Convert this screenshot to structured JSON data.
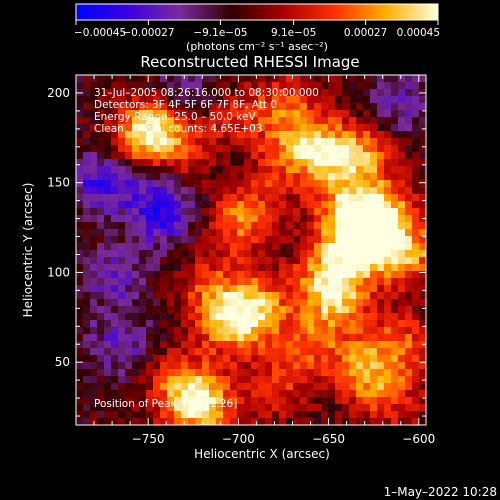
{
  "chart_data": {
    "type": "heatmap",
    "title": "Reconstructed RHESSI Image",
    "xlabel": "Heliocentric X (arcsec)",
    "ylabel": "Heliocentric Y (arcsec)",
    "xlim": [
      -790,
      -596
    ],
    "ylim": [
      15,
      210
    ],
    "x_ticks": [
      -750,
      -700,
      -650,
      -600
    ],
    "x_tick_labels": [
      "−750",
      "−700",
      "−650",
      "−600"
    ],
    "y_ticks": [
      50,
      100,
      150,
      200
    ],
    "y_tick_labels": [
      "50",
      "100",
      "150",
      "200"
    ],
    "colorbar": {
      "range": [
        -0.00045,
        0.00045
      ],
      "tick_values": [
        -0.00045,
        -0.00027,
        -9.1e-05,
        9.1e-05,
        0.00027,
        0.00045
      ],
      "tick_labels": [
        "−0.00045",
        "−0.00027",
        "−9.1e−05",
        "9.1e−05",
        "0.00027",
        "0.00045"
      ],
      "unit_label": "(photons cm⁻² s⁻¹ asec⁻²)",
      "colors": [
        "#0000ff",
        "#3a00e0",
        "#7a2a9a",
        "#300000",
        "#a80000",
        "#ff3000",
        "#ffb000",
        "#ffffe0"
      ]
    },
    "annotations": [
      "31–Jul–2005 08:26:16.000 to 08:30:00.000",
      "Detectors: 3F 4F 5F 6F 7F 8F, Att 0",
      "Energy Range: 25.0 – 50.0 keV",
      "Clean     Total counts: 4.65E+03"
    ],
    "peak_label": "Position of Peak: [−721,26]",
    "peak": [
      -721,
      26
    ],
    "hot_spots": [
      {
        "x": -745,
        "y": 180,
        "value": 0.00032
      },
      {
        "x": -755,
        "y": 175,
        "value": 0.00024
      },
      {
        "x": -725,
        "y": 162,
        "value": 0.00016
      },
      {
        "x": -700,
        "y": 128,
        "value": 0.00028
      },
      {
        "x": -690,
        "y": 150,
        "value": 0.00022
      },
      {
        "x": -668,
        "y": 170,
        "value": 0.00026
      },
      {
        "x": -650,
        "y": 165,
        "value": 0.0003
      },
      {
        "x": -640,
        "y": 132,
        "value": 0.00034
      },
      {
        "x": -628,
        "y": 118,
        "value": 0.00045
      },
      {
        "x": -632,
        "y": 165,
        "value": 0.00028
      },
      {
        "x": -618,
        "y": 135,
        "value": 0.00026
      },
      {
        "x": -605,
        "y": 110,
        "value": 0.0003
      },
      {
        "x": -650,
        "y": 100,
        "value": 0.00032
      },
      {
        "x": -645,
        "y": 85,
        "value": 0.0003
      },
      {
        "x": -690,
        "y": 80,
        "value": 0.00035
      },
      {
        "x": -705,
        "y": 70,
        "value": 0.00028
      },
      {
        "x": -715,
        "y": 90,
        "value": 0.00022
      },
      {
        "x": -660,
        "y": 60,
        "value": 0.00024
      },
      {
        "x": -630,
        "y": 45,
        "value": 0.0003
      },
      {
        "x": -610,
        "y": 60,
        "value": 0.00024
      },
      {
        "x": -735,
        "y": 40,
        "value": 0.0002
      },
      {
        "x": -721,
        "y": 26,
        "value": 0.00045
      },
      {
        "x": -760,
        "y": 120,
        "value": 0.00014
      },
      {
        "x": -700,
        "y": 185,
        "value": 0.00018
      },
      {
        "x": -672,
        "y": 195,
        "value": 0.0002
      },
      {
        "x": -615,
        "y": 28,
        "value": 0.00016
      },
      {
        "x": -680,
        "y": 35,
        "value": 0.00018
      }
    ],
    "cold_spots": [
      {
        "x": -775,
        "y": 150,
        "value": -0.0003
      },
      {
        "x": -740,
        "y": 140,
        "value": -0.00026
      },
      {
        "x": -770,
        "y": 100,
        "value": -0.00022
      },
      {
        "x": -730,
        "y": 205,
        "value": -0.00018
      },
      {
        "x": -765,
        "y": 60,
        "value": -0.0002
      },
      {
        "x": -700,
        "y": 155,
        "value": -0.00016
      },
      {
        "x": -610,
        "y": 195,
        "value": -0.00018
      },
      {
        "x": -750,
        "y": 125,
        "value": -0.0002
      }
    ]
  },
  "footer_timestamp": "1–May–2022 10:28"
}
